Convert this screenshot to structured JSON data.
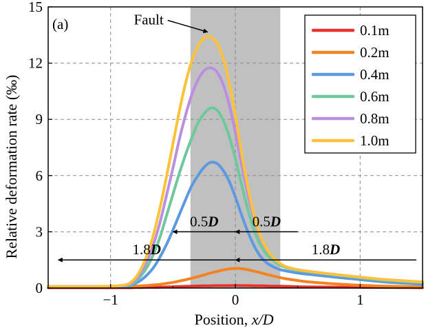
{
  "chart_data": {
    "type": "line",
    "panel_label": "(a)",
    "xlabel": "Position, ",
    "xlabel_var": "x/D",
    "ylabel": "Relative deformation rate (‰)",
    "xlim": [
      -1.5,
      1.5
    ],
    "ylim": [
      0,
      15
    ],
    "xticks": [
      -1,
      0,
      1
    ],
    "xtick_labels": [
      "−1",
      "0",
      "1"
    ],
    "yticks": [
      0,
      3,
      6,
      9,
      12,
      15
    ],
    "grid": true,
    "grid_style": "dashed",
    "legend_position": "top-right",
    "fault_zone": {
      "x_start": -0.36,
      "x_end": 0.36,
      "color": "#c0c0c0"
    },
    "annotations": {
      "fault": {
        "text": "Fault",
        "points_to": [
          -0.2,
          13.4
        ]
      },
      "span_inner_left": {
        "num": "0.5",
        "var": "D",
        "from": -0.5,
        "to": 0,
        "y": 3.0
      },
      "span_inner_right": {
        "num": "0.5",
        "var": "D",
        "from": 0,
        "to": 0.5,
        "y": 3.0
      },
      "span_outer_left": {
        "num": "1.8",
        "var": "D",
        "from": -1.42,
        "to": 0,
        "y": 1.5
      },
      "span_outer_right": {
        "num": "1.8",
        "var": "D",
        "from": 0,
        "to": 1.45,
        "y": 1.5
      }
    },
    "x": [
      -1.5,
      -1.2,
      -1.0,
      -0.9,
      -0.85,
      -0.8,
      -0.75,
      -0.7,
      -0.65,
      -0.6,
      -0.55,
      -0.5,
      -0.45,
      -0.4,
      -0.35,
      -0.3,
      -0.25,
      -0.2,
      -0.15,
      -0.1,
      -0.05,
      0.0,
      0.05,
      0.1,
      0.15,
      0.2,
      0.25,
      0.3,
      0.35,
      0.4,
      0.5,
      0.6,
      0.8,
      1.0,
      1.2,
      1.5
    ],
    "series": [
      {
        "name": "0.1m",
        "color": "#e8322b",
        "values": [
          0.02,
          0.02,
          0.02,
          0.02,
          0.02,
          0.03,
          0.03,
          0.04,
          0.04,
          0.05,
          0.06,
          0.07,
          0.08,
          0.09,
          0.1,
          0.11,
          0.12,
          0.12,
          0.13,
          0.13,
          0.13,
          0.14,
          0.13,
          0.13,
          0.12,
          0.12,
          0.11,
          0.1,
          0.1,
          0.09,
          0.07,
          0.06,
          0.05,
          0.04,
          0.03,
          0.02
        ]
      },
      {
        "name": "0.2m",
        "color": "#f58220",
        "values": [
          0.08,
          0.08,
          0.08,
          0.08,
          0.09,
          0.1,
          0.12,
          0.14,
          0.17,
          0.2,
          0.25,
          0.3,
          0.37,
          0.44,
          0.52,
          0.61,
          0.7,
          0.8,
          0.88,
          0.96,
          1.02,
          1.05,
          1.03,
          0.98,
          0.9,
          0.82,
          0.73,
          0.65,
          0.57,
          0.5,
          0.4,
          0.32,
          0.22,
          0.15,
          0.1,
          0.06
        ]
      },
      {
        "name": "0.4m",
        "color": "#5b9ae0",
        "values": [
          0.08,
          0.08,
          0.08,
          0.09,
          0.12,
          0.25,
          0.45,
          0.75,
          1.15,
          1.7,
          2.35,
          3.1,
          3.9,
          4.7,
          5.45,
          6.0,
          6.45,
          6.7,
          6.65,
          6.3,
          5.7,
          4.85,
          3.9,
          3.0,
          2.25,
          1.7,
          1.35,
          1.15,
          1.0,
          0.92,
          0.8,
          0.72,
          0.58,
          0.45,
          0.32,
          0.2
        ]
      },
      {
        "name": "0.6m",
        "color": "#6dc99b",
        "values": [
          0.08,
          0.08,
          0.08,
          0.1,
          0.15,
          0.35,
          0.7,
          1.2,
          1.9,
          2.8,
          3.9,
          5.0,
          6.1,
          7.1,
          8.0,
          8.8,
          9.3,
          9.6,
          9.5,
          9.0,
          8.1,
          6.9,
          5.5,
          4.2,
          3.1,
          2.3,
          1.8,
          1.5,
          1.25,
          1.1,
          0.95,
          0.85,
          0.7,
          0.55,
          0.42,
          0.3
        ]
      },
      {
        "name": "0.8m",
        "color": "#bb8fe0",
        "values": [
          0.08,
          0.08,
          0.09,
          0.12,
          0.2,
          0.45,
          0.9,
          1.55,
          2.45,
          3.6,
          5.0,
          6.4,
          7.9,
          9.2,
          10.3,
          11.1,
          11.6,
          11.75,
          11.55,
          10.9,
          9.8,
          8.3,
          6.6,
          5.0,
          3.7,
          2.7,
          2.05,
          1.65,
          1.35,
          1.15,
          0.98,
          0.88,
          0.72,
          0.58,
          0.45,
          0.32
        ]
      },
      {
        "name": "1.0m",
        "color": "#fcc23a",
        "values": [
          0.08,
          0.08,
          0.1,
          0.15,
          0.25,
          0.55,
          1.1,
          1.9,
          3.0,
          4.4,
          6.0,
          7.7,
          9.4,
          10.9,
          12.1,
          12.9,
          13.35,
          13.4,
          13.1,
          12.3,
          11.0,
          9.2,
          7.2,
          5.4,
          3.9,
          2.8,
          2.1,
          1.65,
          1.35,
          1.15,
          0.98,
          0.88,
          0.72,
          0.58,
          0.45,
          0.32
        ]
      }
    ]
  }
}
